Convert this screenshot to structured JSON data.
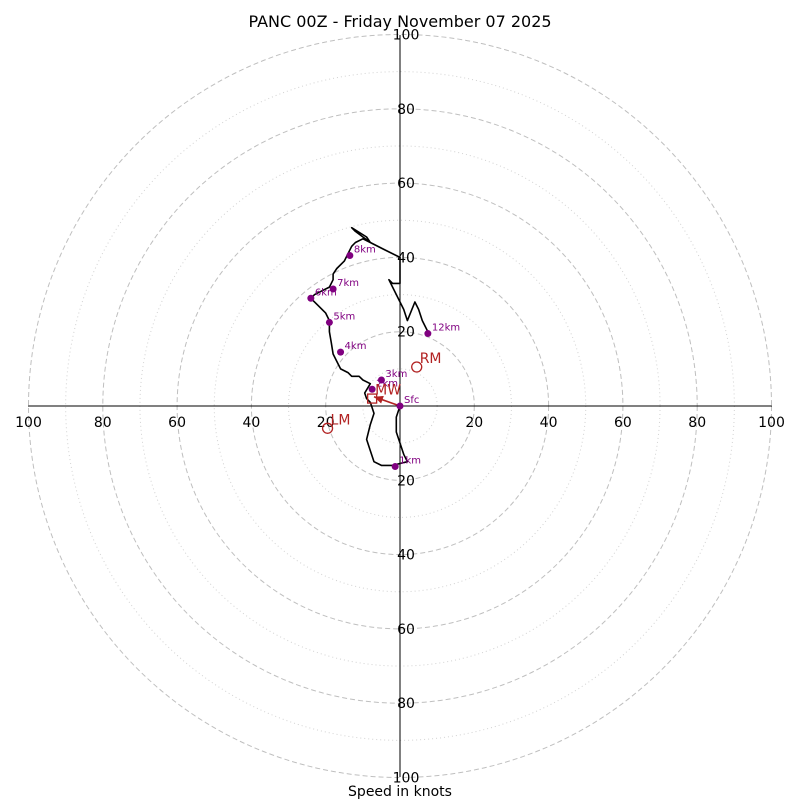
{
  "chart_data": {
    "type": "hodograph",
    "title": "PANC 00Z - Friday November 07 2025",
    "xlabel": "Speed in knots",
    "ylabel": "",
    "range": [
      -100,
      100
    ],
    "rings": {
      "major": [
        20,
        40,
        60,
        80,
        100
      ],
      "minor": [
        10,
        30,
        50,
        70,
        90
      ]
    },
    "tick_labels": {
      "top": [
        "20",
        "40",
        "60",
        "80",
        "100"
      ],
      "bottom": [
        "20",
        "40",
        "60",
        "80",
        "100"
      ],
      "left": [
        "20",
        "40",
        "60",
        "80",
        "100"
      ],
      "right": [
        "20",
        "40",
        "60",
        "80",
        "100"
      ]
    },
    "grid": true,
    "trace": [
      [
        0,
        0
      ],
      [
        -1,
        -3
      ],
      [
        -1,
        -7
      ],
      [
        0,
        -10
      ],
      [
        1,
        -13
      ],
      [
        2,
        -15
      ],
      [
        -2,
        -16
      ],
      [
        -5,
        -16
      ],
      [
        -7,
        -15
      ],
      [
        -8,
        -12
      ],
      [
        -9,
        -9
      ],
      [
        -8,
        -5
      ],
      [
        -7,
        -2
      ],
      [
        -8,
        1
      ],
      [
        -9,
        2
      ],
      [
        -9.5,
        3.5
      ],
      [
        -8,
        6
      ],
      [
        -10,
        7
      ],
      [
        -11,
        8
      ],
      [
        -13,
        8
      ],
      [
        -14,
        9
      ],
      [
        -16,
        10
      ],
      [
        -17,
        12
      ],
      [
        -18,
        14
      ],
      [
        -18.5,
        17
      ],
      [
        -19,
        20
      ],
      [
        -19,
        23
      ],
      [
        -20,
        25
      ],
      [
        -22,
        27
      ],
      [
        -24,
        29
      ],
      [
        -23,
        30
      ],
      [
        -21,
        31
      ],
      [
        -19,
        32
      ],
      [
        -18,
        34
      ],
      [
        -18,
        35.5
      ],
      [
        -17,
        37
      ],
      [
        -15,
        39
      ],
      [
        -14,
        41
      ],
      [
        -13,
        43
      ],
      [
        -12,
        44
      ],
      [
        -10,
        45
      ],
      [
        -8,
        44
      ],
      [
        -9,
        45.5
      ],
      [
        -13,
        48
      ],
      [
        -12,
        47
      ],
      [
        -8,
        44
      ],
      [
        -4,
        42
      ],
      [
        0,
        40
      ],
      [
        0,
        36
      ],
      [
        0,
        33
      ],
      [
        -2,
        33
      ],
      [
        -3,
        34
      ],
      [
        -2,
        32
      ],
      [
        1,
        26
      ],
      [
        2,
        23
      ],
      [
        4,
        28
      ],
      [
        5,
        26
      ],
      [
        6,
        23
      ],
      [
        8,
        19
      ]
    ],
    "height_markers": [
      {
        "label": "Sfc",
        "u": 0,
        "v": 0
      },
      {
        "label": "1km",
        "u": -1.3,
        "v": -16.3
      },
      {
        "label": "2km",
        "u": -7.5,
        "v": 4.5
      },
      {
        "label": "3km",
        "u": -5,
        "v": 7
      },
      {
        "label": "4km",
        "u": -16,
        "v": 14.5
      },
      {
        "label": "5km",
        "u": -19,
        "v": 22.5
      },
      {
        "label": "6km",
        "u": -24,
        "v": 29
      },
      {
        "label": "7km",
        "u": -18,
        "v": 31.5
      },
      {
        "label": "8km",
        "u": -13.5,
        "v": 40.5
      },
      {
        "label": "12km",
        "u": 7.5,
        "v": 19.5
      }
    ],
    "storm_motions": [
      {
        "label": "RM",
        "u": 4.5,
        "v": 10.5
      },
      {
        "label": "LM",
        "u": -19.5,
        "v": -6
      },
      {
        "label": "MW",
        "u": -7.5,
        "v": 2
      }
    ],
    "shear_vector": {
      "from": [
        0,
        0
      ],
      "to": [
        -7,
        2.5
      ]
    },
    "colors": {
      "trace": "#000000",
      "height_markers": "#800080",
      "storm_motion": "#b22222",
      "grid": "#bfbfbf"
    }
  }
}
